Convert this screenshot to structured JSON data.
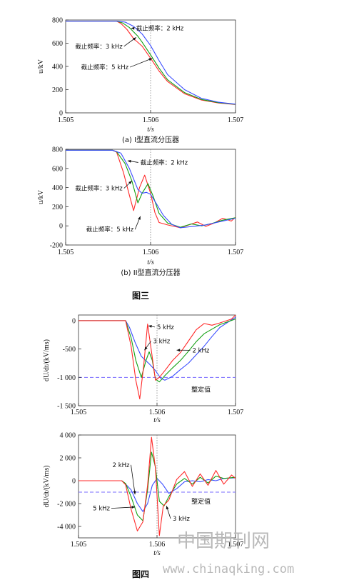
{
  "figure_captions": {
    "fig3": "图三",
    "fig4": "图四"
  },
  "watermark": {
    "chinese": "中国期刊网",
    "url": "www.chinaqking.com"
  },
  "colors": {
    "red": "#ff2a2a",
    "green": "#12a012",
    "blue": "#3a4dff",
    "threshold": "#7a6cff",
    "vline": "#777777"
  },
  "chart_data": [
    {
      "type": "line",
      "caption": "(a) I型直流分压器",
      "xlabel": "t/s",
      "ylabel": "u/kV",
      "xlim": [
        1.505,
        1.507
      ],
      "ylim": [
        0,
        800
      ],
      "xticks": [
        1.505,
        1.506,
        1.507
      ],
      "xtick_labels": [
        "1.505",
        "1.506",
        "1.507"
      ],
      "yticks": [
        0,
        200,
        400,
        600,
        800
      ],
      "ytick_labels": [
        "0",
        "200",
        "400",
        "600",
        "800"
      ],
      "vline": 1.506,
      "series": [
        {
          "name": "截止频率：2 kHz",
          "color": "red",
          "x": [
            1.505,
            1.5056,
            1.50565,
            1.50572,
            1.5058,
            1.5059,
            1.506,
            1.5061,
            1.5062,
            1.5064,
            1.5066,
            1.5068,
            1.507
          ],
          "y": [
            790,
            790,
            770,
            720,
            640,
            575,
            470,
            360,
            270,
            165,
            110,
            85,
            72
          ]
        },
        {
          "name": "截止频率：3 kHz",
          "color": "green",
          "x": [
            1.505,
            1.5056,
            1.50567,
            1.50575,
            1.50585,
            1.5059,
            1.506,
            1.5061,
            1.5062,
            1.5064,
            1.5066,
            1.5068,
            1.507
          ],
          "y": [
            790,
            790,
            775,
            735,
            660,
            610,
            500,
            385,
            285,
            175,
            115,
            88,
            73
          ]
        },
        {
          "name": "截止频率：5 kHz",
          "color": "blue",
          "x": [
            1.505,
            1.5056,
            1.5057,
            1.5058,
            1.5059,
            1.506,
            1.5061,
            1.5062,
            1.5064,
            1.5066,
            1.5068,
            1.507
          ],
          "y": [
            790,
            790,
            782,
            745,
            680,
            580,
            450,
            330,
            200,
            125,
            92,
            75
          ]
        }
      ],
      "annotations": [
        {
          "text": "截止频率：2 kHz",
          "x": 1.50577,
          "y": 730,
          "tx": 1.50583,
          "ty": 710
        },
        {
          "text": "截止频率：3 kHz",
          "x": 1.50583,
          "y": 650,
          "tx": 1.50567,
          "ty": 555
        },
        {
          "text": "截止频率：5 kHz",
          "x": 1.50602,
          "y": 470,
          "tx": 1.50574,
          "ty": 375
        }
      ]
    },
    {
      "type": "line",
      "caption": "(b) II型直流分压器",
      "xlabel": "t/s",
      "ylabel": "u/kV",
      "xlim": [
        1.505,
        1.507
      ],
      "ylim": [
        -200,
        800
      ],
      "xticks": [
        1.505,
        1.506,
        1.507
      ],
      "xtick_labels": [
        "1.505",
        "1.506",
        "1.507"
      ],
      "yticks": [
        -200,
        0,
        200,
        400,
        600,
        800
      ],
      "ytick_labels": [
        "-200",
        "0",
        "200",
        "400",
        "600",
        "800"
      ],
      "vline": 1.506,
      "series": [
        {
          "name": "截止频率：2 kHz",
          "color": "red",
          "x": [
            1.505,
            1.50555,
            1.5056,
            1.50568,
            1.50575,
            1.5058,
            1.50587,
            1.50593,
            1.506,
            1.50605,
            1.5061,
            1.5062,
            1.50635,
            1.50645,
            1.50655,
            1.50665,
            1.50675,
            1.50685,
            1.50695,
            1.507
          ],
          "y": [
            790,
            790,
            770,
            560,
            320,
            160,
            400,
            530,
            340,
            140,
            35,
            10,
            -20,
            10,
            40,
            -5,
            30,
            80,
            50,
            90
          ]
        },
        {
          "name": "截止频率：3 kHz",
          "color": "green",
          "x": [
            1.505,
            1.50555,
            1.5056,
            1.5057,
            1.50578,
            1.50585,
            1.5059,
            1.50597,
            1.50603,
            1.5061,
            1.5062,
            1.50635,
            1.50648,
            1.5066,
            1.50672,
            1.50685,
            1.507
          ],
          "y": [
            790,
            790,
            775,
            650,
            470,
            240,
            340,
            440,
            310,
            130,
            30,
            -15,
            20,
            0,
            25,
            60,
            85
          ]
        },
        {
          "name": "截止频率：5 kHz",
          "color": "blue",
          "x": [
            1.505,
            1.50555,
            1.50565,
            1.50575,
            1.50585,
            1.5059,
            1.50595,
            1.506,
            1.50607,
            1.50615,
            1.50625,
            1.50635,
            1.5065,
            1.50665,
            1.5068,
            1.507
          ],
          "y": [
            790,
            790,
            760,
            600,
            380,
            340,
            350,
            330,
            230,
            110,
            15,
            -20,
            -5,
            10,
            40,
            80
          ]
        }
      ],
      "annotations": [
        {
          "text": "截止频率：2 kHz",
          "x": 1.50573,
          "y": 680,
          "tx": 1.50588,
          "ty": 640
        },
        {
          "text": "截止频率：3 kHz",
          "x": 1.50578,
          "y": 470,
          "tx": 1.50567,
          "ty": 370
        },
        {
          "text": "截止频率：5 kHz",
          "x": 1.50588,
          "y": 100,
          "tx": 1.5058,
          "ty": -60
        }
      ]
    },
    {
      "type": "line",
      "caption": "",
      "xlabel": "t/s",
      "ylabel": "dU/dt/(kV/ms)",
      "xlim": [
        1.505,
        1.507
      ],
      "ylim": [
        -1500,
        100
      ],
      "xticks": [
        1.505,
        1.506,
        1.507
      ],
      "xtick_labels": [
        "1.505",
        "1.506",
        "1.507"
      ],
      "yticks": [
        -1500,
        -1000,
        -500,
        0
      ],
      "ytick_labels": [
        "-1 500",
        "-1 000",
        "-500",
        "0"
      ],
      "vline": 1.506,
      "threshold": {
        "y": -1000,
        "label": "整定值"
      },
      "series": [
        {
          "name": "2 kHz",
          "color": "blue",
          "x": [
            1.505,
            1.5056,
            1.50565,
            1.50572,
            1.5058,
            1.5059,
            1.50598,
            1.50605,
            1.5061,
            1.5062,
            1.5063,
            1.5064,
            1.5065,
            1.5066,
            1.5067,
            1.5068,
            1.507
          ],
          "y": [
            0,
            0,
            -120,
            -380,
            -630,
            -760,
            -880,
            -1020,
            -1050,
            -980,
            -860,
            -750,
            -600,
            -450,
            -280,
            -120,
            60
          ]
        },
        {
          "name": "3 kHz",
          "color": "green",
          "x": [
            1.505,
            1.5056,
            1.50567,
            1.50573,
            1.5058,
            1.50586,
            1.5059,
            1.50594,
            1.50598,
            1.50603,
            1.5061,
            1.5062,
            1.5063,
            1.5064,
            1.5065,
            1.5066,
            1.5067,
            1.5068,
            1.507
          ],
          "y": [
            0,
            0,
            -300,
            -700,
            -1000,
            -700,
            -550,
            -700,
            -1030,
            -1080,
            -970,
            -830,
            -700,
            -540,
            -370,
            -230,
            -150,
            -70,
            30
          ]
        },
        {
          "name": "5 kHz",
          "color": "red",
          "x": [
            1.505,
            1.5056,
            1.50567,
            1.50573,
            1.50578,
            1.50583,
            1.50588,
            1.50593,
            1.50598,
            1.50603,
            1.5061,
            1.5062,
            1.5063,
            1.5064,
            1.5065,
            1.5066,
            1.5067,
            1.5068,
            1.50695,
            1.507
          ],
          "y": [
            0,
            0,
            -450,
            -1050,
            -1380,
            -800,
            -60,
            -550,
            -1050,
            -1000,
            -880,
            -700,
            -560,
            -360,
            -160,
            -50,
            -80,
            -40,
            30,
            100
          ]
        }
      ],
      "annotations": [
        {
          "text": "5 kHz",
          "x": 1.50589,
          "y": -90,
          "tx": 1.506,
          "ty": -150
        },
        {
          "text": "3 kHz",
          "x": 1.50584,
          "y": -520,
          "tx": 1.50595,
          "ty": -400
        },
        {
          "text": "2 kHz",
          "x": 1.50625,
          "y": -520,
          "tx": 1.50645,
          "ty": -560
        }
      ]
    },
    {
      "type": "line",
      "caption": "",
      "xlabel": "t/s",
      "ylabel": "dU/dt/(kV/ms)",
      "xlim": [
        1.505,
        1.507
      ],
      "ylim": [
        -5000,
        4000
      ],
      "xticks": [
        1.505,
        1.506,
        1.507
      ],
      "xtick_labels": [
        "1.505",
        "1.506",
        "1.507"
      ],
      "yticks": [
        -4000,
        -2000,
        0,
        2000,
        4000
      ],
      "ytick_labels": [
        "-4 000",
        "-2 000",
        "0",
        "2 000",
        "4 000"
      ],
      "vline": 1.506,
      "threshold": {
        "y": -1000,
        "label": "整定值"
      },
      "series": [
        {
          "name": "2 kHz",
          "color": "blue",
          "x": [
            1.505,
            1.50555,
            1.5056,
            1.50567,
            1.50575,
            1.50582,
            1.50588,
            1.50594,
            1.506,
            1.50607,
            1.50615,
            1.50625,
            1.50635,
            1.50645,
            1.50655,
            1.50665,
            1.50675,
            1.50685,
            1.507
          ],
          "y": [
            0,
            0,
            -300,
            -800,
            -2000,
            -2700,
            -2000,
            -400,
            200,
            -300,
            -1100,
            -700,
            -100,
            0,
            -100,
            100,
            0,
            200,
            250
          ]
        },
        {
          "name": "3 kHz",
          "color": "green",
          "x": [
            1.505,
            1.50555,
            1.5056,
            1.50567,
            1.50575,
            1.50582,
            1.50588,
            1.50593,
            1.50598,
            1.50603,
            1.50609,
            1.50615,
            1.50625,
            1.50635,
            1.50645,
            1.50655,
            1.50665,
            1.50675,
            1.50685,
            1.507
          ],
          "y": [
            0,
            0,
            -250,
            -1400,
            -3000,
            -3500,
            -800,
            2500,
            1200,
            -1800,
            -2200,
            -1400,
            -300,
            200,
            -300,
            300,
            -200,
            400,
            200,
            300
          ]
        },
        {
          "name": "5 kHz",
          "color": "red",
          "x": [
            1.505,
            1.50555,
            1.5056,
            1.50567,
            1.50575,
            1.50582,
            1.50588,
            1.50593,
            1.50598,
            1.50603,
            1.50608,
            1.50615,
            1.50625,
            1.50635,
            1.50645,
            1.50655,
            1.50665,
            1.50675,
            1.50685,
            1.50695,
            1.507
          ],
          "y": [
            0,
            0,
            -350,
            -2500,
            -4400,
            -3600,
            -400,
            3800,
            1100,
            -4800,
            -2200,
            -1700,
            100,
            800,
            -500,
            600,
            -400,
            900,
            -300,
            500,
            200
          ]
        }
      ],
      "annotations": [
        {
          "text": "2 kHz",
          "x": 1.50572,
          "y": -1200,
          "tx": 1.50565,
          "ty": 1200
        },
        {
          "text": "5 kHz",
          "x": 1.50572,
          "y": -2300,
          "tx": 1.5054,
          "ty": -2600
        },
        {
          "text": "3 kHz",
          "x": 1.50612,
          "y": -2200,
          "tx": 1.5062,
          "ty": -3500
        }
      ]
    }
  ]
}
